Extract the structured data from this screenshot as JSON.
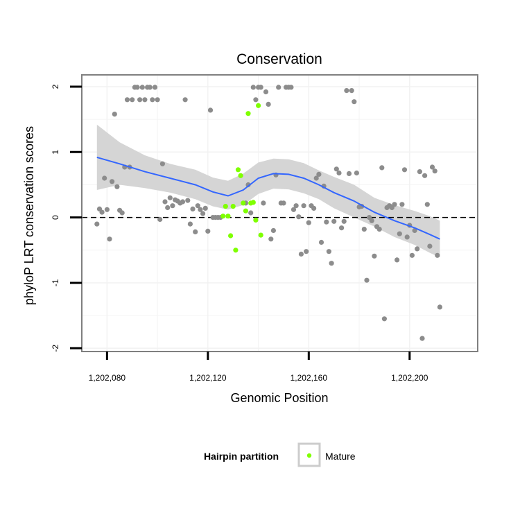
{
  "chart_data": {
    "type": "scatter",
    "title": "Conservation",
    "xlabel": "Genomic Position",
    "ylabel": "phyloP LRT conservation scores",
    "xlim": [
      1202070,
      1202227
    ],
    "ylim": [
      -2.05,
      2.18
    ],
    "x_ticks": [
      1202080,
      1202120,
      1202160,
      1202200
    ],
    "x_tick_labels": [
      "1,202,080",
      "1,202,120",
      "1,202,160",
      "1,202,200"
    ],
    "y_ticks": [
      -2,
      -1,
      0,
      1,
      2
    ],
    "y_tick_labels": [
      "-2",
      "-1",
      "0",
      "1",
      "2"
    ],
    "reference_line": {
      "y": 0,
      "style": "dashed"
    },
    "grid": true,
    "colors": {
      "points": "#8c8c8c",
      "mature": "#7fff00",
      "smooth_line": "#3366ff",
      "confidence_band": "#d3d3d3",
      "panel_border": "#7f7f7f",
      "grid": "#f2f2f2"
    },
    "series": [
      {
        "name": "",
        "points": [
          [
            1202076,
            -0.1
          ],
          [
            1202077,
            0.13
          ],
          [
            1202078,
            0.08
          ],
          [
            1202079,
            0.6
          ],
          [
            1202080,
            0.12
          ],
          [
            1202081,
            -0.33
          ],
          [
            1202082,
            0.55
          ],
          [
            1202083,
            1.58
          ],
          [
            1202084,
            0.47
          ],
          [
            1202085,
            0.11
          ],
          [
            1202086,
            0.07
          ],
          [
            1202087,
            0.77
          ],
          [
            1202088,
            1.8
          ],
          [
            1202089,
            0.77
          ],
          [
            1202090,
            1.8
          ],
          [
            1202091,
            1.99
          ],
          [
            1202092,
            1.99
          ],
          [
            1202093,
            1.8
          ],
          [
            1202094,
            1.99
          ],
          [
            1202095,
            1.8
          ],
          [
            1202096,
            1.99
          ],
          [
            1202097,
            1.99
          ],
          [
            1202098,
            1.8
          ],
          [
            1202099,
            1.99
          ],
          [
            1202100,
            1.8
          ],
          [
            1202101,
            -0.03
          ],
          [
            1202102,
            0.82
          ],
          [
            1202103,
            0.24
          ],
          [
            1202104,
            0.15
          ],
          [
            1202105,
            0.3
          ],
          [
            1202106,
            0.18
          ],
          [
            1202107,
            0.27
          ],
          [
            1202108,
            0.25
          ],
          [
            1202109,
            0.22
          ],
          [
            1202110,
            0.24
          ],
          [
            1202111,
            1.8
          ],
          [
            1202112,
            0.26
          ],
          [
            1202113,
            -0.1
          ],
          [
            1202114,
            0.13
          ],
          [
            1202115,
            -0.22
          ],
          [
            1202116,
            0.18
          ],
          [
            1202117,
            0.12
          ],
          [
            1202118,
            0.06
          ],
          [
            1202119,
            0.14
          ],
          [
            1202120,
            -0.21
          ],
          [
            1202121,
            1.64
          ],
          [
            1202122,
            0.0
          ],
          [
            1202123,
            0.0
          ],
          [
            1202124,
            0.0
          ],
          [
            1202125,
            0.0
          ],
          [
            1202135,
            0.22
          ],
          [
            1202136,
            0.5
          ],
          [
            1202137,
            0.07
          ],
          [
            1202138,
            1.99
          ],
          [
            1202139,
            1.8
          ],
          [
            1202140,
            1.99
          ],
          [
            1202141,
            1.99
          ],
          [
            1202142,
            0.22
          ],
          [
            1202143,
            1.92
          ],
          [
            1202144,
            1.73
          ],
          [
            1202145,
            -0.33
          ],
          [
            1202146,
            -0.2
          ],
          [
            1202147,
            0.65
          ],
          [
            1202148,
            1.99
          ],
          [
            1202149,
            0.22
          ],
          [
            1202150,
            0.22
          ],
          [
            1202151,
            1.99
          ],
          [
            1202152,
            1.99
          ],
          [
            1202153,
            1.99
          ],
          [
            1202154,
            0.12
          ],
          [
            1202155,
            0.18
          ],
          [
            1202156,
            0.01
          ],
          [
            1202157,
            -0.56
          ],
          [
            1202158,
            0.18
          ],
          [
            1202159,
            -0.52
          ],
          [
            1202160,
            -0.08
          ],
          [
            1202161,
            0.18
          ],
          [
            1202162,
            0.14
          ],
          [
            1202163,
            0.6
          ],
          [
            1202164,
            0.66
          ],
          [
            1202165,
            -0.38
          ],
          [
            1202166,
            0.48
          ],
          [
            1202167,
            -0.07
          ],
          [
            1202168,
            -0.52
          ],
          [
            1202169,
            -0.7
          ],
          [
            1202170,
            -0.06
          ],
          [
            1202171,
            0.74
          ],
          [
            1202172,
            0.68
          ],
          [
            1202173,
            -0.16
          ],
          [
            1202174,
            -0.06
          ],
          [
            1202175,
            1.94
          ],
          [
            1202176,
            0.67
          ],
          [
            1202177,
            1.94
          ],
          [
            1202178,
            1.77
          ],
          [
            1202179,
            0.68
          ],
          [
            1202180,
            0.16
          ],
          [
            1202181,
            0.17
          ],
          [
            1202182,
            -0.18
          ],
          [
            1202183,
            -0.96
          ],
          [
            1202184,
            0.0
          ],
          [
            1202185,
            -0.05
          ],
          [
            1202186,
            -0.59
          ],
          [
            1202187,
            -0.14
          ],
          [
            1202188,
            -0.18
          ],
          [
            1202189,
            0.76
          ],
          [
            1202190,
            -1.55
          ],
          [
            1202191,
            0.15
          ],
          [
            1202192,
            0.18
          ],
          [
            1202193,
            0.15
          ],
          [
            1202194,
            0.2
          ],
          [
            1202195,
            -0.65
          ],
          [
            1202196,
            -0.25
          ],
          [
            1202197,
            0.2
          ],
          [
            1202198,
            0.73
          ],
          [
            1202199,
            -0.3
          ],
          [
            1202200,
            -0.12
          ],
          [
            1202201,
            -0.58
          ],
          [
            1202202,
            -0.2
          ],
          [
            1202203,
            -0.48
          ],
          [
            1202204,
            0.7
          ],
          [
            1202205,
            -1.85
          ],
          [
            1202206,
            0.64
          ],
          [
            1202207,
            0.2
          ],
          [
            1202208,
            -0.44
          ],
          [
            1202209,
            0.77
          ],
          [
            1202210,
            0.71
          ],
          [
            1202211,
            -0.58
          ],
          [
            1202212,
            -1.37
          ]
        ]
      },
      {
        "name": "Mature",
        "points": [
          [
            1202126,
            0.02
          ],
          [
            1202127,
            0.17
          ],
          [
            1202128,
            0.02
          ],
          [
            1202129,
            -0.28
          ],
          [
            1202130,
            0.17
          ],
          [
            1202131,
            -0.5
          ],
          [
            1202132,
            0.73
          ],
          [
            1202133,
            0.64
          ],
          [
            1202134,
            0.22
          ],
          [
            1202135,
            0.1
          ],
          [
            1202136,
            1.59
          ],
          [
            1202137,
            0.22
          ],
          [
            1202138,
            0.23
          ],
          [
            1202139,
            -0.04
          ],
          [
            1202140,
            1.71
          ],
          [
            1202141,
            -0.27
          ]
        ]
      }
    ],
    "smooth": {
      "x": [
        1202076,
        1202085,
        1202095,
        1202105,
        1202115,
        1202122,
        1202128,
        1202134,
        1202140,
        1202146,
        1202152,
        1202158,
        1202164,
        1202170,
        1202178,
        1202186,
        1202194,
        1202202,
        1202208,
        1202212
      ],
      "y": [
        0.92,
        0.82,
        0.7,
        0.6,
        0.5,
        0.39,
        0.33,
        0.42,
        0.6,
        0.67,
        0.66,
        0.6,
        0.5,
        0.38,
        0.25,
        0.08,
        -0.05,
        -0.16,
        -0.26,
        -0.33
      ],
      "upper": [
        1.42,
        1.15,
        0.95,
        0.82,
        0.73,
        0.61,
        0.56,
        0.67,
        0.84,
        0.9,
        0.89,
        0.83,
        0.72,
        0.62,
        0.5,
        0.3,
        0.19,
        0.1,
        0.02,
        -0.05
      ],
      "lower": [
        0.42,
        0.5,
        0.45,
        0.38,
        0.28,
        0.17,
        0.12,
        0.19,
        0.36,
        0.44,
        0.43,
        0.37,
        0.28,
        0.14,
        0.0,
        -0.14,
        -0.3,
        -0.42,
        -0.54,
        -0.61
      ]
    }
  },
  "legend": {
    "title": "Hairpin partition",
    "items": [
      {
        "label": "Mature",
        "color": "#7fff00"
      }
    ]
  }
}
